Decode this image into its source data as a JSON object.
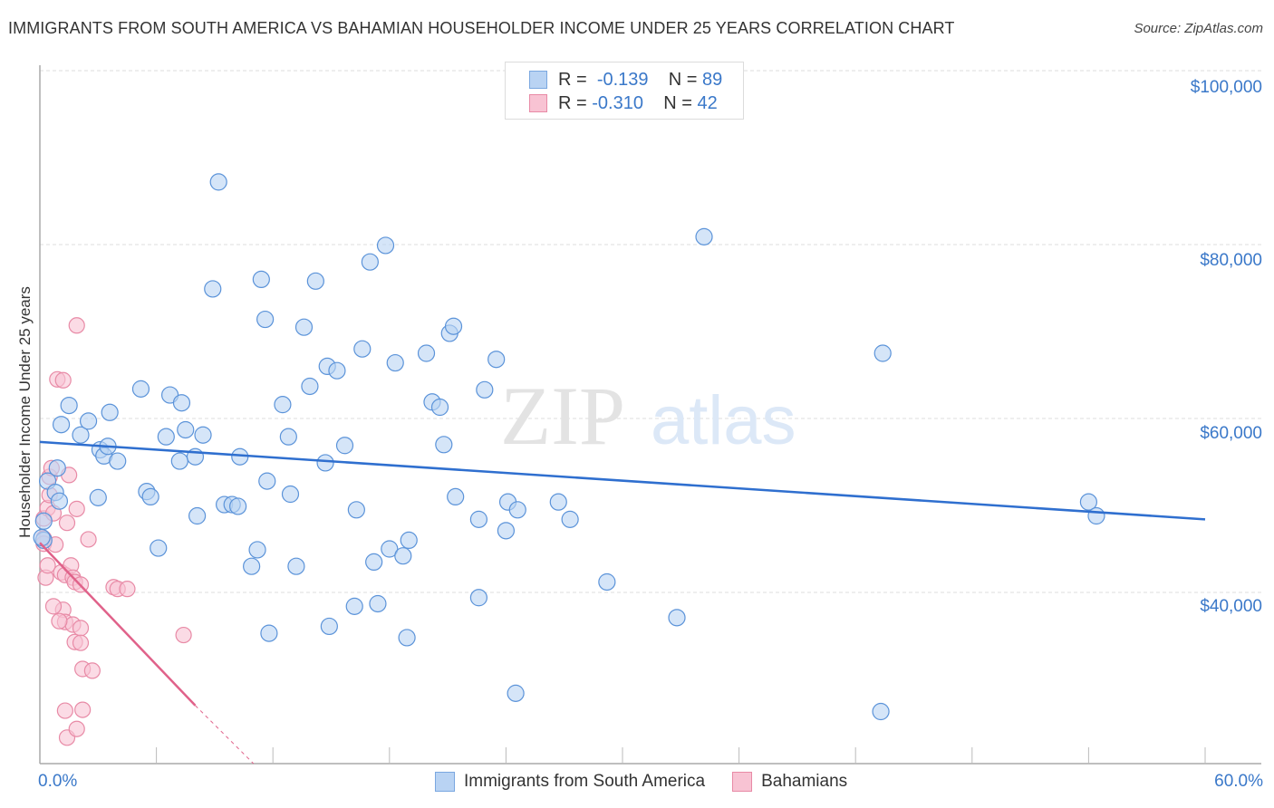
{
  "header": {
    "title": "IMMIGRANTS FROM SOUTH AMERICA VS BAHAMIAN HOUSEHOLDER INCOME UNDER 25 YEARS CORRELATION CHART",
    "source": "Source: ZipAtlas.com"
  },
  "legend_box": {
    "rows": [
      {
        "r_label": "R =",
        "r_value": "-0.139",
        "n_label": "N =",
        "n_value": "89"
      },
      {
        "r_label": "R =",
        "r_value": "-0.310",
        "n_label": "N =",
        "n_value": "42"
      }
    ]
  },
  "axes": {
    "ylabel": "Householder Income Under 25 years",
    "yticks": [
      "$100,000",
      "$80,000",
      "$60,000",
      "$40,000"
    ],
    "xtick_left": "0.0%",
    "xtick_right": "60.0%"
  },
  "bottom_legend": {
    "series1": "Immigrants from South America",
    "series2": "Bahamians"
  },
  "watermark": {
    "zip": "ZIP",
    "atlas": "atlas"
  },
  "colors": {
    "blue_fill": "#b9d3f3",
    "blue_stroke": "#5b93d9",
    "blue_line": "#2f6fcf",
    "pink_fill": "#f8c3d3",
    "pink_stroke": "#e88aa6",
    "pink_line": "#e0628a",
    "tick_text": "#3a78c9"
  },
  "chart_data": {
    "type": "scatter",
    "title": "IMMIGRANTS FROM SOUTH AMERICA VS BAHAMIAN HOUSEHOLDER INCOME UNDER 25 YEARS CORRELATION CHART",
    "xlabel": "",
    "ylabel": "Householder Income Under 25 years",
    "xlim": [
      0,
      60
    ],
    "ylim": [
      21000,
      102000
    ],
    "grid": true,
    "legend_position": "bottom",
    "series": [
      {
        "name": "Immigrants from South America",
        "R": -0.139,
        "N": 89,
        "trend": {
          "x": [
            0,
            60
          ],
          "y": [
            57300,
            48400
          ]
        },
        "points": [
          [
            0.2,
            48200
          ],
          [
            0.2,
            46000
          ],
          [
            0.4,
            52800
          ],
          [
            0.8,
            51500
          ],
          [
            0.9,
            54300
          ],
          [
            1.1,
            59300
          ],
          [
            1.5,
            61500
          ],
          [
            2.1,
            58100
          ],
          [
            2.5,
            59700
          ],
          [
            3.1,
            56400
          ],
          [
            3.3,
            55700
          ],
          [
            3.5,
            56800
          ],
          [
            3.6,
            60700
          ],
          [
            4.0,
            55100
          ],
          [
            5.2,
            63400
          ],
          [
            5.5,
            51600
          ],
          [
            5.7,
            51000
          ],
          [
            6.1,
            45100
          ],
          [
            6.5,
            57900
          ],
          [
            6.7,
            62700
          ],
          [
            7.3,
            61800
          ],
          [
            7.5,
            58700
          ],
          [
            7.2,
            55100
          ],
          [
            8.0,
            55600
          ],
          [
            8.1,
            48800
          ],
          [
            8.4,
            58100
          ],
          [
            8.9,
            74900
          ],
          [
            9.2,
            87200
          ],
          [
            9.5,
            50100
          ],
          [
            9.9,
            50100
          ],
          [
            10.2,
            49900
          ],
          [
            10.3,
            55600
          ],
          [
            10.9,
            43000
          ],
          [
            11.2,
            44900
          ],
          [
            11.4,
            76000
          ],
          [
            11.6,
            71400
          ],
          [
            11.7,
            52800
          ],
          [
            11.8,
            35300
          ],
          [
            12.5,
            61600
          ],
          [
            12.8,
            57900
          ],
          [
            12.9,
            51300
          ],
          [
            13.2,
            43000
          ],
          [
            13.6,
            70500
          ],
          [
            13.9,
            63700
          ],
          [
            14.2,
            75800
          ],
          [
            14.7,
            54900
          ],
          [
            14.8,
            66000
          ],
          [
            14.9,
            36100
          ],
          [
            15.3,
            65500
          ],
          [
            15.7,
            56900
          ],
          [
            16.2,
            38400
          ],
          [
            16.3,
            49500
          ],
          [
            16.6,
            68000
          ],
          [
            17.0,
            78000
          ],
          [
            17.2,
            43500
          ],
          [
            17.4,
            38700
          ],
          [
            17.8,
            79900
          ],
          [
            18.0,
            45000
          ],
          [
            18.3,
            66400
          ],
          [
            18.7,
            44200
          ],
          [
            18.9,
            34800
          ],
          [
            19.0,
            46000
          ],
          [
            19.9,
            67500
          ],
          [
            20.2,
            61900
          ],
          [
            20.6,
            61300
          ],
          [
            20.8,
            57000
          ],
          [
            21.1,
            69800
          ],
          [
            21.3,
            70600
          ],
          [
            21.4,
            51000
          ],
          [
            22.6,
            39400
          ],
          [
            22.6,
            48400
          ],
          [
            22.9,
            63300
          ],
          [
            23.5,
            66800
          ],
          [
            24.0,
            47100
          ],
          [
            24.1,
            50400
          ],
          [
            24.6,
            49500
          ],
          [
            24.5,
            28400
          ],
          [
            26.7,
            50400
          ],
          [
            27.3,
            48400
          ],
          [
            29.2,
            41200
          ],
          [
            32.8,
            37100
          ],
          [
            34.2,
            80900
          ],
          [
            43.3,
            26300
          ],
          [
            43.4,
            67500
          ],
          [
            54.0,
            50400
          ],
          [
            54.4,
            48800
          ],
          [
            1.0,
            50500
          ],
          [
            3.0,
            50900
          ],
          [
            0.1,
            46300
          ]
        ]
      },
      {
        "name": "Bahamians",
        "R": -0.31,
        "N": 42,
        "trend": {
          "x": [
            0,
            8
          ],
          "y": [
            45700,
            27000
          ]
        },
        "trend_dashed_extension": {
          "x": [
            8,
            11
          ],
          "y": [
            27000,
            20000
          ]
        },
        "points": [
          [
            0.2,
            48500
          ],
          [
            0.2,
            46200
          ],
          [
            0.2,
            45600
          ],
          [
            0.3,
            41700
          ],
          [
            0.4,
            49700
          ],
          [
            0.4,
            43100
          ],
          [
            0.5,
            53300
          ],
          [
            0.5,
            51200
          ],
          [
            0.6,
            54300
          ],
          [
            0.7,
            49100
          ],
          [
            0.8,
            45500
          ],
          [
            0.9,
            64500
          ],
          [
            1.1,
            42300
          ],
          [
            1.2,
            38000
          ],
          [
            1.3,
            42000
          ],
          [
            1.3,
            36600
          ],
          [
            1.2,
            64400
          ],
          [
            1.3,
            26400
          ],
          [
            1.4,
            23300
          ],
          [
            1.4,
            48000
          ],
          [
            1.5,
            53500
          ],
          [
            1.6,
            43100
          ],
          [
            1.7,
            41700
          ],
          [
            1.7,
            36300
          ],
          [
            1.8,
            41200
          ],
          [
            1.8,
            34300
          ],
          [
            1.9,
            24300
          ],
          [
            1.9,
            49600
          ],
          [
            2.1,
            40900
          ],
          [
            2.1,
            35900
          ],
          [
            2.1,
            34200
          ],
          [
            2.2,
            26500
          ],
          [
            2.2,
            31200
          ],
          [
            2.5,
            46100
          ],
          [
            2.7,
            31000
          ],
          [
            1.9,
            70700
          ],
          [
            3.8,
            40600
          ],
          [
            4.0,
            40400
          ],
          [
            4.5,
            40400
          ],
          [
            7.4,
            35100
          ],
          [
            0.7,
            38400
          ],
          [
            1.0,
            36700
          ]
        ]
      }
    ]
  }
}
